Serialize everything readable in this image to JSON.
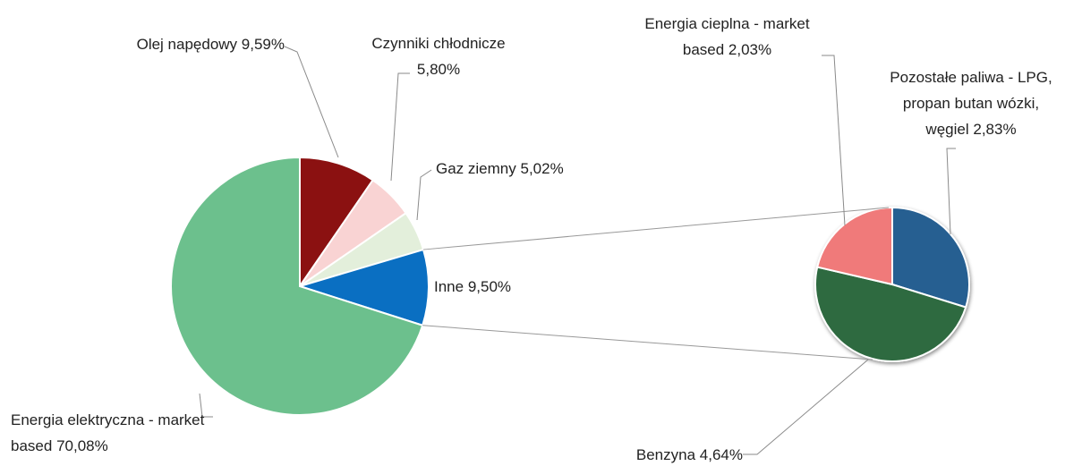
{
  "chart_data": {
    "type": "pie-of-pie",
    "categories": [
      "Olej napędowy",
      "Czynniki chłodnicze",
      "Gaz ziemny",
      "Inne",
      "Energia elektryczna - market based"
    ],
    "values": [
      9.59,
      5.8,
      5.02,
      9.5,
      70.08
    ],
    "value_labels": [
      "9,59%",
      "5,80%",
      "5,02%",
      "9,50%",
      "70,08%"
    ],
    "colors": [
      "#8b1111",
      "#f9d3d3",
      "#e3efdb",
      "#0a6fc2",
      "#6cc08d"
    ],
    "secondary": {
      "categories": [
        "Pozostałe paliwa - LPG, propan butan wózki, węgiel",
        "Benzyna",
        "Energia cieplna - market based"
      ],
      "values": [
        2.83,
        4.64,
        2.03
      ],
      "value_labels": [
        "2,83%",
        "4,64%",
        "2,03%"
      ],
      "colors": [
        "#255e91",
        "#2d6a40",
        "#f07a7a"
      ]
    }
  }
}
